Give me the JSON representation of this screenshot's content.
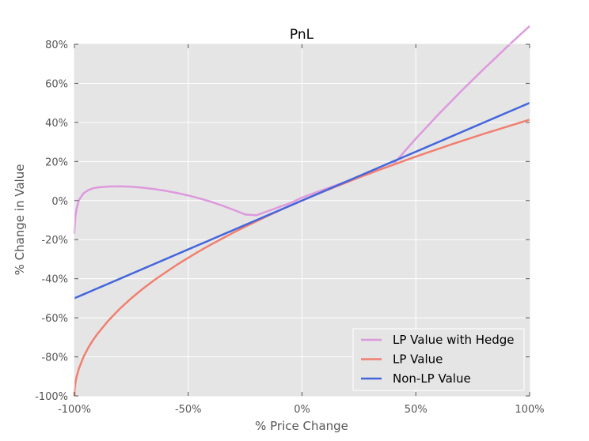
{
  "chart_data": {
    "type": "line",
    "title": "PnL",
    "xlabel": "% Price Change",
    "ylabel": "% Change in Value",
    "xlim": [
      -100,
      100
    ],
    "ylim": [
      -100,
      80
    ],
    "x_ticks": [
      -100,
      -50,
      0,
      50,
      100
    ],
    "x_tick_labels": [
      "-100%",
      "-50%",
      "0%",
      "50%",
      "100%"
    ],
    "y_ticks": [
      -100,
      -80,
      -60,
      -40,
      -20,
      0,
      20,
      40,
      60,
      80
    ],
    "y_tick_labels": [
      "-100%",
      "-80%",
      "-60%",
      "-40%",
      "-20%",
      "0%",
      "20%",
      "40%",
      "60%",
      "80%"
    ],
    "grid": true,
    "background": "#e5e5e5",
    "legend_position": "lower-right",
    "x": [
      -100,
      -99.9,
      -99.5,
      -99,
      -98,
      -96,
      -94,
      -92,
      -90,
      -85,
      -80,
      -75,
      -70,
      -65,
      -60,
      -55,
      -50,
      -45,
      -40,
      -35,
      -30,
      -25,
      -20,
      -15,
      -10,
      -5,
      0,
      5,
      10,
      15,
      20,
      25,
      30,
      35,
      40,
      45,
      50,
      55,
      60,
      65,
      70,
      75,
      80,
      85,
      90,
      95,
      100
    ],
    "series": [
      {
        "name": "LP Value with Hedge",
        "color": "#dd99dd",
        "values": [
          -17,
          -13.8,
          -7.5,
          -3.8,
          0.3,
          3.7,
          5.3,
          6.2,
          6.7,
          7.2,
          7.3,
          7.1,
          6.6,
          5.9,
          5,
          3.9,
          2.6,
          1.1,
          -0.6,
          -2.6,
          -4.8,
          -7.1,
          -7.5,
          -5.4,
          -3.3,
          -1.2,
          1.5,
          3.7,
          5.8,
          7.9,
          10,
          12.2,
          14.2,
          16.2,
          18.3,
          25.1,
          31.7,
          37.9,
          44.2,
          50.1,
          56.1,
          61.8,
          67.5,
          73,
          78.6,
          84,
          89.3
        ]
      },
      {
        "name": "LP Value",
        "color": "#f08070",
        "values": [
          -100,
          -96.8,
          -92.9,
          -90,
          -85.9,
          -80,
          -75.5,
          -71.7,
          -68.4,
          -61.3,
          -55.3,
          -50,
          -45.2,
          -40.8,
          -36.8,
          -32.9,
          -29.3,
          -25.8,
          -22.5,
          -19.4,
          -16.3,
          -13.4,
          -10.6,
          -7.8,
          -5.1,
          -2.5,
          0,
          2.5,
          4.9,
          7.2,
          9.5,
          11.8,
          14,
          16.2,
          18.3,
          20.4,
          22.5,
          24.5,
          26.5,
          28.5,
          30.4,
          32.3,
          34.2,
          36,
          37.8,
          39.6,
          41.4
        ]
      },
      {
        "name": "Non-LP Value",
        "color": "#4466dd",
        "values": [
          -50,
          -49.95,
          -49.75,
          -49.5,
          -49,
          -48,
          -47,
          -46,
          -45,
          -42.5,
          -40,
          -37.5,
          -35,
          -32.5,
          -30,
          -27.5,
          -25,
          -22.5,
          -20,
          -17.5,
          -15,
          -12.5,
          -10,
          -7.5,
          -5,
          -2.5,
          0,
          2.5,
          5,
          7.5,
          10,
          12.5,
          15,
          17.5,
          20,
          22.5,
          25,
          27.5,
          30,
          32.5,
          35,
          37.5,
          40,
          42.5,
          45,
          47.5,
          50
        ]
      }
    ]
  }
}
